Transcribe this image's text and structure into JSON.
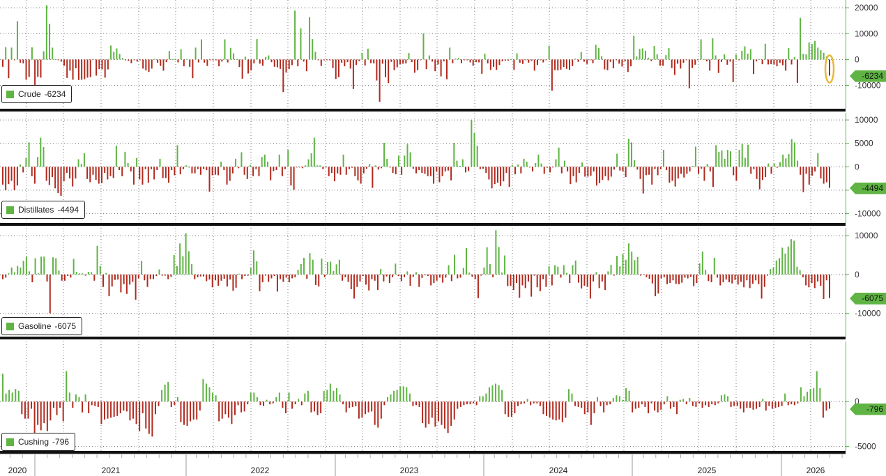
{
  "colors": {
    "positive": "#5fb443",
    "negative": "#b02a1e",
    "grid": "#7a7a7a",
    "separator": "#111111",
    "axis": "#58b54a",
    "tag": "#5fb443",
    "highlight": "#e8b93a"
  },
  "x_axis": {
    "labels": [
      "2020",
      "2021",
      "2022",
      "2023",
      "2024",
      "2025",
      "2026"
    ]
  },
  "chart_data": [
    {
      "type": "bar",
      "series_label": "Crude",
      "last_value_label": "-6234",
      "y_ticks": [
        20000,
        10000,
        0,
        -10000
      ],
      "y_tick_labels": [
        "20000",
        "10000",
        "0",
        "-10000"
      ],
      "ylim": [
        -19000,
        23000
      ],
      "grid": true,
      "highlight_last": true,
      "values": [
        -2800,
        4800,
        -7200,
        4600,
        -200,
        14800,
        -1200,
        -1500,
        -7800,
        -6700,
        4700,
        -10000,
        -6700,
        -7000,
        3200,
        21000,
        13800,
        4600,
        100,
        -200,
        -800,
        -2400,
        -7100,
        -4300,
        -7800,
        -3400,
        -7900,
        -7800,
        -7600,
        -7000,
        -6800,
        200,
        -6200,
        -3700,
        -3800,
        -7000,
        -3800,
        5400,
        3000,
        4300,
        2200,
        600,
        -300,
        -500,
        -1400,
        -100,
        -800,
        -200,
        -3500,
        -4200,
        -4800,
        -3500,
        300,
        -1200,
        -2500,
        -4300,
        -1000,
        3300,
        100,
        100,
        -1100,
        4000,
        -2600,
        200,
        -2800,
        -7200,
        4600,
        -1100,
        7800,
        -1200,
        -2500,
        -200,
        -200,
        -300,
        -2600,
        -800,
        7800,
        -1100,
        4500,
        2400,
        100,
        -2900,
        -7400,
        1100,
        -5400,
        -4200,
        -1500,
        7900,
        -1600,
        -2400,
        1000,
        1600,
        -1000,
        -2800,
        -3000,
        -3600,
        -12600,
        -5000,
        -3700,
        -2200,
        18900,
        -2600,
        12100,
        -800,
        -4500,
        16400,
        7900,
        3000,
        -200,
        -2500,
        -300,
        -100,
        -300,
        -3300,
        -7500,
        -6800,
        -1200,
        -2600,
        -1000,
        -3500,
        -11400,
        -2100,
        -600,
        2600,
        -2300,
        4200,
        -1400,
        -1500,
        -8100,
        -16300,
        -1600,
        -6800,
        -9100,
        -900,
        -4100,
        -3000,
        -1800,
        -1600,
        -1500,
        2500,
        -1000,
        -5100,
        -4100,
        -200,
        10100,
        -3700,
        1600,
        -800,
        -4500,
        -1900,
        -6500,
        -700,
        -7600,
        4600,
        -1400,
        400,
        600,
        -1400,
        -200,
        -300,
        -1100,
        -2400,
        -1000,
        -1100,
        -5500,
        2300,
        -1500,
        -4000,
        -2800,
        -4000,
        -2100,
        -700,
        -400,
        -400,
        100,
        -4000,
        2400,
        -1200,
        -1700,
        -100,
        -1200,
        -500,
        -4300,
        -2100,
        -200,
        -1100,
        -200,
        5300,
        -12000,
        -4100,
        -4200,
        -3900,
        -2900,
        -3600,
        -4000,
        -2500,
        400,
        -900,
        2900,
        -800,
        -1700,
        -100,
        -1400,
        5700,
        4500,
        1300,
        -3800,
        -4100,
        -900,
        -3400,
        -200,
        -1600,
        -2700,
        -700,
        -4800,
        -2600,
        9200,
        1200,
        4100,
        4300,
        3400,
        700,
        -600,
        5200,
        2000,
        -2400,
        -2400,
        1700,
        4400,
        -3300,
        -6000,
        -1600,
        -3500,
        -1300,
        -200,
        -11100,
        -3300,
        -2000,
        -200,
        7800,
        200,
        -700,
        -4300,
        8200,
        1600,
        -5200,
        -900,
        2000,
        -2000,
        -800,
        -8700,
        1900,
        -200,
        3400,
        5100,
        2300,
        4000,
        -5600,
        -700,
        200,
        -1800,
        6100,
        -1900,
        -1800,
        -1900,
        -2600,
        -1300,
        -2200,
        -4300,
        4400,
        -1900,
        900,
        -9000,
        16100,
        2200,
        2000,
        6600,
        6000,
        7200,
        4600,
        3600,
        2600,
        1200,
        -6234
      ]
    },
    {
      "type": "bar",
      "series_label": "Distillates",
      "last_value_label": "-4494",
      "y_ticks": [
        10000,
        5000,
        0,
        -5000,
        -10000
      ],
      "y_tick_labels": [
        "10000",
        "5000",
        "0",
        "-5000",
        "-10000"
      ],
      "ylim": [
        -12000,
        11500
      ],
      "grid": true,
      "highlight_last": false,
      "values": [
        -3800,
        -5000,
        -3700,
        -3000,
        -5000,
        -4000,
        500,
        -1200,
        1900,
        5200,
        -2000,
        -3600,
        2100,
        6200,
        4200,
        -3000,
        -3900,
        -2200,
        -4600,
        -5600,
        -6200,
        -3100,
        -1300,
        -2500,
        -4200,
        -2500,
        1600,
        600,
        2900,
        -2600,
        -3300,
        -1700,
        -2800,
        -3600,
        -3500,
        -1300,
        -2700,
        -2000,
        -2400,
        4500,
        -700,
        -2000,
        3200,
        800,
        -1000,
        -3800,
        1900,
        -2700,
        -3800,
        -500,
        -3400,
        -500,
        -2700,
        -700,
        1700,
        -2400,
        -2400,
        -3400,
        -700,
        -1800,
        4600,
        -1600,
        -500,
        300,
        -100,
        -1400,
        -1400,
        -500,
        -1700,
        -500,
        -700,
        -5300,
        -1800,
        -1700,
        -1800,
        1100,
        -700,
        -3800,
        -3000,
        -1400,
        1700,
        -300,
        3100,
        -1700,
        -2600,
        400,
        -2000,
        -500,
        -2000,
        2100,
        2600,
        1100,
        -2900,
        -900,
        -700,
        2600,
        -2000,
        -500,
        3600,
        -4000,
        -4900,
        -100,
        -100,
        -300,
        300,
        1600,
        2900,
        6200,
        300,
        300,
        -500,
        -100,
        -2000,
        -1300,
        -3100,
        -1400,
        -1700,
        2600,
        -1700,
        -500,
        -200,
        -2000,
        -2900,
        -3600,
        -1400,
        -400,
        600,
        -4500,
        300,
        -600,
        -300,
        5100,
        1700,
        -100,
        -1300,
        -1600,
        2400,
        -1700,
        2400,
        4800,
        3100,
        -400,
        -1400,
        -700,
        -1300,
        -1500,
        -2000,
        -2000,
        -3600,
        -1000,
        -3300,
        -2000,
        -1000,
        -800,
        -2900,
        5100,
        1300,
        200,
        1600,
        -1200,
        -900,
        10000,
        7200,
        4500,
        -500,
        -400,
        -1300,
        -2700,
        -4600,
        -3700,
        -3400,
        -4100,
        -3100,
        -1300,
        -4300,
        400,
        -1600,
        500,
        -1400,
        1700,
        1100,
        -100,
        -1000,
        800,
        2600,
        700,
        -1500,
        -200,
        -1200,
        -100,
        1600,
        4100,
        -1400,
        1300,
        -1000,
        -3700,
        -2000,
        -3300,
        -1300,
        900,
        -2100,
        -2100,
        -1900,
        -1000,
        -4000,
        -3500,
        -2800,
        -2000,
        -2900,
        -2100,
        -600,
        2800,
        -800,
        -1000,
        -2200,
        6000,
        5200,
        1400,
        -600,
        -2600,
        -5700,
        -1800,
        -1700,
        -3800,
        -500,
        -1800,
        -500,
        3600,
        -700,
        -3400,
        -3000,
        -4200,
        -2500,
        -1500,
        -2300,
        -1500,
        -1000,
        200,
        4300,
        -1500,
        -400,
        -3000,
        600,
        -1000,
        -4300,
        4600,
        3200,
        3500,
        1700,
        3600,
        3300,
        -1800,
        -3000,
        3600,
        4900,
        1900,
        4700,
        -1500,
        -500,
        -2600,
        -4800,
        -2800,
        -2200,
        700,
        -1500,
        700,
        -200,
        1000,
        2600,
        1800,
        2700,
        5900,
        5200,
        1300,
        -1700,
        -5400,
        -1500,
        -3800,
        -1900,
        -1000,
        2900,
        -2500,
        -3600,
        -3300,
        -4494
      ]
    },
    {
      "type": "bar",
      "series_label": "Gasoline",
      "last_value_label": "-6075",
      "y_ticks": [
        10000,
        0,
        -10000
      ],
      "y_tick_labels": [
        "10000",
        "0",
        "-10000"
      ],
      "ylim": [
        -16000,
        12000
      ],
      "grid": true,
      "highlight_last": false,
      "values": [
        -1200,
        -800,
        300,
        1800,
        600,
        2200,
        1800,
        3500,
        4600,
        800,
        -2000,
        4200,
        300,
        4600,
        4600,
        -1800,
        -10000,
        4400,
        4200,
        1000,
        -1600,
        -1600,
        -400,
        -800,
        4000,
        700,
        300,
        300,
        -300,
        700,
        600,
        -1600,
        7400,
        2200,
        -3200,
        400,
        -5600,
        -3100,
        -1400,
        -1300,
        -4600,
        -2500,
        -5000,
        -2600,
        -1900,
        -6500,
        -1000,
        3500,
        -1500,
        -3200,
        -1200,
        -1200,
        -400,
        1300,
        -300,
        -300,
        -1200,
        -600,
        5000,
        2200,
        8000,
        4700,
        10600,
        6000,
        2700,
        -1200,
        -700,
        -500,
        -500,
        -1700,
        -1300,
        -3300,
        -1500,
        -2900,
        -1600,
        -1100,
        -3100,
        -1300,
        -4200,
        -3400,
        200,
        -1200,
        -400,
        -300,
        1700,
        6200,
        3400,
        -4300,
        -2000,
        -300,
        -1900,
        -1000,
        -400,
        -4400,
        -1200,
        -1900,
        -800,
        -2000,
        -1000,
        -700,
        1200,
        2700,
        4300,
        -1100,
        5500,
        3800,
        -2700,
        -3100,
        4100,
        -700,
        3200,
        3300,
        900,
        2600,
        3800,
        -1600,
        -700,
        -1900,
        -3800,
        -6200,
        -3200,
        -1800,
        -400,
        -2600,
        -4100,
        -1200,
        -1600,
        -4000,
        1400,
        -1800,
        -500,
        -2200,
        -700,
        2800,
        -400,
        -1700,
        -700,
        800,
        -2900,
        -600,
        600,
        -3200,
        -900,
        -100,
        -400,
        -2800,
        -2200,
        -1600,
        -800,
        -2100,
        -800,
        2400,
        -1700,
        5100,
        -1000,
        -800,
        1700,
        6800,
        500,
        -600,
        -1200,
        -6100,
        -300,
        1800,
        7000,
        2700,
        -700,
        11400,
        7100,
        500,
        4900,
        -3000,
        -2900,
        -4000,
        -2200,
        -6000,
        -2800,
        -3500,
        -1800,
        -5700,
        -300,
        -3300,
        -4300,
        -1200,
        -3200,
        2100,
        -2800,
        2400,
        2000,
        -800,
        2400,
        400,
        -2200,
        2400,
        3600,
        -2100,
        -3600,
        -2900,
        -3200,
        -6200,
        -1800,
        600,
        -3500,
        -1800,
        -4000,
        800,
        2500,
        -300,
        4800,
        2100,
        5300,
        3800,
        8000,
        5900,
        3700,
        4500,
        -300,
        100,
        -700,
        -1100,
        -2300,
        -5600,
        -4900,
        -1000,
        -700,
        -2500,
        -2200,
        -1500,
        -2400,
        -2500,
        -2100,
        -800,
        -1000,
        -600,
        -3000,
        -2200,
        2900,
        5900,
        1200,
        -1700,
        -2000,
        4300,
        -800,
        -2800,
        -2000,
        -1300,
        -2000,
        -2300,
        -1400,
        -2600,
        -1900,
        -3300,
        -1500,
        -3500,
        -2400,
        -1500,
        -2500,
        -6200,
        -3200,
        -300,
        1400,
        1800,
        3600,
        4200,
        6900,
        5400,
        7200,
        9100,
        8700,
        2000,
        1100,
        -700,
        -2800,
        -3300,
        -2200,
        -3500,
        -1800,
        -2900,
        -6300,
        -1500,
        -6075
      ]
    },
    {
      "type": "bar",
      "series_label": "Cushing",
      "last_value_label": "-796",
      "y_ticks": [
        0,
        -5000
      ],
      "y_tick_labels": [
        "0",
        "-5000"
      ],
      "ylim": [
        -5500,
        6700
      ],
      "grid": true,
      "highlight_last": false,
      "values": [
        3100,
        900,
        1300,
        1000,
        1400,
        1200,
        -1400,
        -1900,
        -1900,
        -800,
        -4100,
        -2600,
        -3200,
        -2400,
        -3300,
        -2100,
        -700,
        -1500,
        -700,
        -2200,
        3400,
        1000,
        -700,
        800,
        500,
        -1200,
        800,
        -1300,
        -400,
        -500,
        -600,
        -2500,
        -2000,
        -1900,
        -1800,
        -1700,
        -1600,
        -1300,
        -1000,
        -1100,
        -2100,
        -1900,
        -2500,
        -3300,
        -1300,
        -3000,
        -3600,
        -3900,
        -1400,
        -500,
        1300,
        1900,
        2200,
        -600,
        -400,
        500,
        -2300,
        -2600,
        -2700,
        -2200,
        -2000,
        -2000,
        -1000,
        2500,
        2000,
        1600,
        1000,
        700,
        -2200,
        -1900,
        -1400,
        -1800,
        -2500,
        -1500,
        -400,
        -1200,
        -1100,
        -300,
        1000,
        1000,
        500,
        -400,
        -500,
        200,
        -300,
        -200,
        500,
        1000,
        -700,
        -1300,
        1000,
        -800,
        -300,
        300,
        -400,
        900,
        1200,
        -1200,
        -1100,
        -1500,
        -1300,
        1200,
        1300,
        2000,
        1200,
        1500,
        800,
        -300,
        -1200,
        -700,
        -600,
        -500,
        -1900,
        -1800,
        -1400,
        -1200,
        -1100,
        -2600,
        -2900,
        -1900,
        -400,
        500,
        800,
        1200,
        1300,
        1700,
        1700,
        1600,
        900,
        -500,
        -400,
        -600,
        -2400,
        -2900,
        -2500,
        -1800,
        -2800,
        -2200,
        -2600,
        -3000,
        -3500,
        -2700,
        -2000,
        -800,
        -600,
        -400,
        -300,
        -300,
        -200,
        -400,
        600,
        600,
        900,
        1600,
        1800,
        2000,
        1800,
        1300,
        -1400,
        -1700,
        -1700,
        -1300,
        -500,
        -300,
        -200,
        300,
        -400,
        -200,
        -200,
        -500,
        -1400,
        -1600,
        -1800,
        -2000,
        -2100,
        -2000,
        -2300,
        -1800,
        1400,
        900,
        -500,
        -600,
        -700,
        -1400,
        -1200,
        -2600,
        -1300,
        500,
        -500,
        -1200,
        -400,
        -300,
        400,
        700,
        600,
        200,
        1500,
        1200,
        -1200,
        -800,
        -700,
        -300,
        -600,
        -1300,
        -200,
        -1000,
        -1200,
        -900,
        -300,
        600,
        -800,
        -600,
        -1400,
        200,
        300,
        -300,
        400,
        -500,
        -600,
        -200,
        -700,
        -400,
        -600,
        -300,
        -400,
        -200,
        700,
        800,
        600,
        -600,
        -500,
        -500,
        -800,
        -1200,
        -700,
        -700,
        -900,
        -800,
        -600,
        300,
        -1000,
        -500,
        -800,
        -700,
        -600,
        -500,
        900,
        -400,
        -300,
        -400,
        -200,
        1600,
        600,
        1100,
        1400,
        1500,
        3400,
        1500,
        -1800,
        -1000,
        -796
      ]
    }
  ]
}
